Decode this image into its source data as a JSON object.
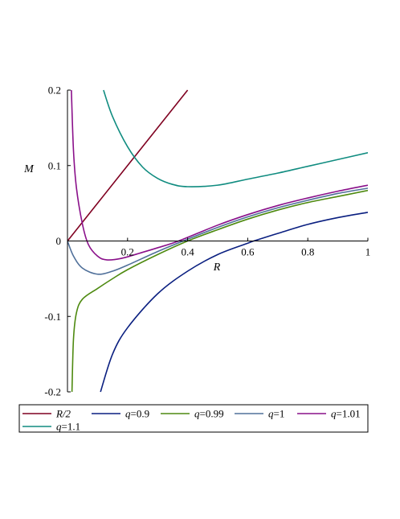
{
  "chart_data": {
    "type": "line",
    "title": "",
    "xlabel": "R",
    "ylabel": "M",
    "xlim": [
      0,
      1
    ],
    "ylim": [
      -0.2,
      0.2
    ],
    "grid": false,
    "legend_placement": "bottom",
    "x_ticks": [
      {
        "value": 0.2,
        "label": "0.2"
      },
      {
        "value": 0.4,
        "label": "0.4"
      },
      {
        "value": 0.6,
        "label": "0.6"
      },
      {
        "value": 0.8,
        "label": "0.8"
      },
      {
        "value": 1,
        "label": "1"
      }
    ],
    "y_ticks": [
      {
        "value": 0.2,
        "label": "0.2"
      },
      {
        "value": 0.1,
        "label": "0.1"
      },
      {
        "value": 0,
        "label": "0"
      },
      {
        "value": -0.1,
        "label": "-0.1"
      },
      {
        "value": -0.2,
        "label": "-0.2"
      }
    ],
    "series": [
      {
        "name": "R/2",
        "label_var": "R/2",
        "label_rest": "",
        "color": "#7f0020",
        "points": [
          [
            0,
            0
          ],
          [
            0.2,
            0.1
          ],
          [
            0.4,
            0.2
          ]
        ]
      },
      {
        "name": "q=0.9",
        "label_var": "q",
        "label_rest": "=0.9",
        "color": "#0a1f80",
        "points": [
          [
            0.11,
            -0.2
          ],
          [
            0.15,
            -0.15
          ],
          [
            0.2,
            -0.115
          ],
          [
            0.3,
            -0.07
          ],
          [
            0.4,
            -0.04
          ],
          [
            0.5,
            -0.018
          ],
          [
            0.6,
            -0.003
          ],
          [
            0.62,
            0
          ],
          [
            0.7,
            0.01
          ],
          [
            0.8,
            0.022
          ],
          [
            0.9,
            0.031
          ],
          [
            1.0,
            0.038
          ]
        ]
      },
      {
        "name": "q=0.99",
        "label_var": "q",
        "label_rest": "=0.99",
        "color": "#4e8a10",
        "points": [
          [
            0.015,
            -0.2
          ],
          [
            0.02,
            -0.13
          ],
          [
            0.03,
            -0.095
          ],
          [
            0.05,
            -0.077
          ],
          [
            0.1,
            -0.063
          ],
          [
            0.15,
            -0.05
          ],
          [
            0.2,
            -0.038
          ],
          [
            0.3,
            -0.018
          ],
          [
            0.4,
            0.0
          ],
          [
            0.5,
            0.015
          ],
          [
            0.6,
            0.029
          ],
          [
            0.7,
            0.041
          ],
          [
            0.8,
            0.051
          ],
          [
            0.9,
            0.059
          ],
          [
            1.0,
            0.067
          ]
        ]
      },
      {
        "name": "q=1",
        "label_var": "q",
        "label_rest": "=1",
        "color": "#50709a",
        "points": [
          [
            0,
            0
          ],
          [
            0.02,
            -0.02
          ],
          [
            0.05,
            -0.036
          ],
          [
            0.1,
            -0.044
          ],
          [
            0.15,
            -0.04
          ],
          [
            0.2,
            -0.032
          ],
          [
            0.3,
            -0.014
          ],
          [
            0.385,
            0
          ],
          [
            0.5,
            0.018
          ],
          [
            0.6,
            0.032
          ],
          [
            0.7,
            0.044
          ],
          [
            0.8,
            0.054
          ],
          [
            0.9,
            0.063
          ],
          [
            1.0,
            0.07
          ]
        ]
      },
      {
        "name": "q=1.01",
        "label_var": "q",
        "label_rest": "=1.01",
        "color": "#8a108a",
        "points": [
          [
            0.013,
            0.2
          ],
          [
            0.02,
            0.12
          ],
          [
            0.03,
            0.07
          ],
          [
            0.05,
            0.022
          ],
          [
            0.07,
            -0.005
          ],
          [
            0.1,
            -0.02
          ],
          [
            0.13,
            -0.025
          ],
          [
            0.18,
            -0.023
          ],
          [
            0.25,
            -0.015
          ],
          [
            0.3,
            -0.009
          ],
          [
            0.37,
            0
          ],
          [
            0.5,
            0.021
          ],
          [
            0.6,
            0.035
          ],
          [
            0.7,
            0.047
          ],
          [
            0.8,
            0.057
          ],
          [
            0.9,
            0.066
          ],
          [
            1.0,
            0.074
          ]
        ]
      },
      {
        "name": "q=1.1",
        "label_var": "q",
        "label_rest": "=1.1",
        "color": "#108c80",
        "points": [
          [
            0.12,
            0.2
          ],
          [
            0.15,
            0.165
          ],
          [
            0.2,
            0.125
          ],
          [
            0.25,
            0.098
          ],
          [
            0.3,
            0.083
          ],
          [
            0.35,
            0.075
          ],
          [
            0.4,
            0.072
          ],
          [
            0.5,
            0.074
          ],
          [
            0.6,
            0.082
          ],
          [
            0.7,
            0.09
          ],
          [
            0.8,
            0.099
          ],
          [
            0.9,
            0.108
          ],
          [
            1.0,
            0.117
          ]
        ]
      }
    ]
  }
}
